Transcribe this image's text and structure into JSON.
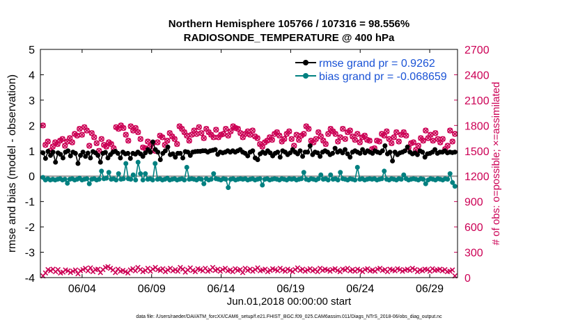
{
  "chart_data": {
    "type": "line",
    "title_lines": [
      "Northern Hemisphere 105766 / 107316 = 98.556%",
      "RADIOSONDE_TEMPERATURE @ 400 hPa"
    ],
    "xlabel": "Jun.01,2018 00:00:00 start",
    "ylabel_left": "rmse and bias (model - observation)",
    "ylabel_right": "# of obs: o=possible; ×=assimilated",
    "footnote": "data file: /Users/raeder/DAI/ATM_forcXX/CAM6_setup/f.e21.FHIST_BGC.f09_025.CAM6assim.011/Diags_NTrS_2018-06/obs_diag_output.nc",
    "x_ticks": [
      {
        "day": 4,
        "label": "06/04"
      },
      {
        "day": 9,
        "label": "06/09"
      },
      {
        "day": 14,
        "label": "06/14"
      },
      {
        "day": 19,
        "label": "06/19"
      },
      {
        "day": 24,
        "label": "06/24"
      },
      {
        "day": 29,
        "label": "06/29"
      }
    ],
    "xlim_days": [
      1,
      31
    ],
    "ylim_left": [
      -4,
      5
    ],
    "yticks_left": [
      "5",
      "4",
      "3",
      "2",
      "1",
      "0",
      "-1",
      "-2",
      "-3",
      "-4"
    ],
    "ylim_right": [
      0,
      2700
    ],
    "yticks_right": [
      "2700",
      "2400",
      "2100",
      "1800",
      "1500",
      "1200",
      "900",
      "600",
      "300",
      "0"
    ],
    "grid": false,
    "legend_position": "top-right",
    "colors": {
      "rmse": "#000000",
      "bias": "#008080",
      "obs": "#cc0055",
      "zero_line": "#999999"
    },
    "series": [
      {
        "name": "rmse grand pr = 0.9262",
        "key": "rmse",
        "values": [
          0.92,
          0.7,
          0.98,
          0.82,
          0.95,
          0.55,
          0.92,
          0.86,
          0.72,
          0.95,
          1.0,
          0.8,
          0.95,
          0.9,
          0.5,
          0.82,
          0.95,
          0.78,
          0.91,
          0.72,
          0.97,
          0.92,
          0.82,
          0.55,
          0.9,
          0.94,
          0.72,
          0.85,
          0.95,
          0.98,
          0.9,
          0.72,
          0.95,
          0.88,
          0.9,
          0.7,
          0.9,
          0.87,
          0.95,
          0.88,
          0.78,
          0.92,
          1.05,
          0.95,
          1.35,
          1.05,
          0.95,
          0.65,
          0.9,
          1.0,
          1.15,
          0.85,
          0.88,
          0.75,
          0.9,
          0.9,
          0.72,
          0.97,
          0.95,
          0.82,
          0.95,
          0.97,
          0.98,
          0.98,
          1.0,
          1.0,
          0.95,
          1.0,
          1.02,
          1.05,
          0.86,
          0.95,
          0.92,
          0.95,
          1.0,
          0.95,
          1.0,
          0.95,
          1.0,
          1.05,
          0.95,
          0.9,
          0.8,
          0.95,
          1.0,
          0.72,
          0.65,
          0.88,
          0.95,
          0.9,
          1.0,
          0.92,
          0.8,
          0.9,
          0.95,
          0.75,
          1.0,
          0.95,
          0.85,
          0.92,
          1.05,
          0.95,
          0.88,
          1.0,
          0.78,
          0.95,
          0.95,
          1.2,
          0.85,
          0.95,
          0.92,
          0.78,
          0.95,
          1.0,
          0.95,
          0.85,
          0.9,
          1.1,
          0.95,
          1.0,
          0.92,
          1.05,
          0.88,
          0.75,
          0.95,
          1.0,
          0.95,
          0.9,
          1.05,
          0.92,
          1.0,
          0.95,
          0.9,
          1.0,
          0.95,
          0.92,
          1.0,
          1.2,
          0.88,
          0.95,
          0.6,
          0.95,
          0.85,
          0.92,
          0.95,
          1.0,
          1.15,
          0.95,
          0.88,
          0.92,
          0.85,
          1.0,
          0.95,
          0.75,
          0.88,
          0.9,
          0.95,
          1.05,
          0.9,
          0.95,
          0.95,
          1.0,
          0.92,
          0.95,
          0.93,
          0.95
        ]
      },
      {
        "name": "bias grand pr = -0.068659",
        "key": "bias",
        "values": [
          -0.05,
          -0.15,
          -0.1,
          -0.15,
          -0.12,
          -0.15,
          -0.12,
          -0.1,
          -0.15,
          -0.12,
          -0.28,
          -0.12,
          -0.1,
          -0.15,
          -0.12,
          -0.08,
          -0.15,
          -0.12,
          -0.1,
          -0.3,
          -0.12,
          -0.1,
          -0.15,
          -0.12,
          0.2,
          -0.1,
          -0.08,
          0.15,
          -0.12,
          -0.1,
          -0.15,
          0.1,
          -0.12,
          -0.1,
          0.5,
          -0.1,
          -0.12,
          0.05,
          -0.15,
          0.55,
          0.1,
          -0.15,
          0.1,
          -0.12,
          -0.1,
          -0.15,
          0.5,
          -0.12,
          -0.1,
          -0.15,
          -0.12,
          -0.08,
          -0.15,
          -0.12,
          -0.1,
          -0.15,
          -0.12,
          -0.1,
          -0.15,
          0.35,
          -0.12,
          -0.1,
          -0.12,
          -0.15,
          -0.1,
          -0.12,
          -0.3,
          -0.1,
          -0.15,
          -0.12,
          0.1,
          -0.1,
          -0.12,
          -0.15,
          -0.1,
          -0.12,
          -0.45,
          -0.12,
          -0.1,
          -0.15,
          -0.12,
          -0.1,
          -0.12,
          -0.1,
          -0.15,
          -0.12,
          -0.1,
          -0.15,
          -0.12,
          -0.1,
          -0.35,
          -0.12,
          -0.1,
          -0.15,
          -0.12,
          -0.1,
          -0.12,
          -0.15,
          -0.1,
          -0.12,
          -0.15,
          -0.1,
          -0.12,
          -0.1,
          -0.15,
          -0.12,
          -0.1,
          0.15,
          -0.12,
          -0.15,
          -0.1,
          -0.12,
          -0.15,
          -0.1,
          0.05,
          -0.12,
          -0.1,
          -0.15,
          0.05,
          -0.12,
          -0.1,
          -0.15,
          0.15,
          -0.1,
          -0.12,
          -0.15,
          -0.1,
          -0.12,
          -0.15,
          0.35,
          -0.12,
          -0.1,
          -0.15,
          -0.12,
          -0.1,
          -0.12,
          -0.1,
          -0.15,
          -0.12,
          -0.1,
          0.2,
          -0.12,
          -0.15,
          -0.1,
          -0.12,
          -0.15,
          -0.1,
          -0.12,
          0.05,
          -0.1,
          -0.15,
          -0.12,
          -0.1,
          -0.12,
          -0.15,
          -0.1,
          -0.12,
          -0.3,
          -0.15,
          -0.1,
          -0.12,
          -0.15,
          -0.1,
          -0.12,
          -0.15,
          -0.1,
          -0.12,
          0.1,
          -0.25,
          -0.4
        ]
      },
      {
        "name": "# of obs possible",
        "key": "obs_possible",
        "values": [
          1800,
          1570,
          1610,
          1500,
          1550,
          1600,
          1580,
          1620,
          1640,
          1560,
          1610,
          1650,
          1600,
          1700,
          1680,
          1760,
          1690,
          1780,
          1740,
          1560,
          1710,
          1660,
          1590,
          1500,
          1640,
          1570,
          1550,
          1600,
          1580,
          1530,
          1780,
          1760,
          1800,
          1770,
          1690,
          1620,
          1790,
          1740,
          1770,
          1720,
          1640,
          1540,
          1530,
          1610,
          1550,
          1590,
          1500,
          1600,
          1680,
          1660,
          1570,
          1620,
          1710,
          1670,
          1640,
          1580,
          1790,
          1760,
          1720,
          1680,
          1620,
          1690,
          1740,
          1700,
          1780,
          1710,
          1650,
          1760,
          1720,
          1690,
          1660,
          1750,
          1660,
          1690,
          1700,
          1760,
          1680,
          1730,
          1790,
          1770,
          1760,
          1710,
          1660,
          1700,
          1730,
          1690,
          1740,
          1670,
          1650,
          1580,
          1550,
          1600,
          1620,
          1660,
          1630,
          1700,
          1720,
          1680,
          1610,
          1640,
          1700,
          1730,
          1640,
          1560,
          1690,
          1630,
          1680,
          1700,
          1790,
          1760,
          1620,
          1600,
          1640,
          1720,
          1670,
          1620,
          1580,
          1700,
          1760,
          1730,
          1700,
          1610,
          1660,
          1760,
          1640,
          1720,
          1740,
          1670,
          1630,
          1700,
          1600,
          1660,
          1680,
          1630,
          1620,
          1520,
          1530,
          1620,
          1610,
          1700,
          1680,
          1730,
          1640,
          1590,
          1660,
          1720,
          1610,
          1690,
          1720,
          1680,
          1540,
          1590,
          1600,
          1510,
          1560,
          1650,
          1620,
          1740,
          1650,
          1690,
          1620,
          1710,
          1640,
          1600,
          1640,
          1520,
          1560,
          1740,
          1610,
          1700
        ]
      },
      {
        "name": "# of obs assimilated",
        "key": "obs_assim",
        "values": [
          20,
          55,
          95,
          80,
          100,
          70,
          95,
          55,
          65,
          90,
          80,
          60,
          75,
          90,
          45,
          80,
          95,
          110,
          80,
          115,
          70,
          95,
          100,
          60,
          95,
          120,
          130,
          110,
          90,
          60,
          100,
          75,
          85,
          70,
          55,
          90,
          105,
          80,
          120,
          95,
          70,
          85,
          110,
          75,
          100,
          120,
          95,
          85,
          105,
          70,
          90,
          110,
          80,
          95,
          75,
          120,
          100,
          65,
          90,
          115,
          85,
          70,
          105,
          95,
          80,
          110,
          75,
          90,
          120,
          85,
          100,
          75,
          95,
          110,
          80,
          90,
          70,
          105,
          85,
          95,
          60,
          110,
          85,
          100,
          75,
          95,
          115,
          80,
          90,
          100,
          70,
          85,
          105,
          95,
          80,
          110,
          90,
          75,
          100,
          85,
          70,
          95,
          115,
          85,
          100,
          75,
          90,
          105,
          80,
          95,
          70,
          110,
          85,
          100,
          90,
          75,
          95,
          105,
          85,
          70,
          100,
          90,
          110,
          80,
          95,
          75,
          100,
          85,
          70,
          95,
          105,
          80,
          90,
          75,
          100,
          110,
          85,
          95,
          70,
          100,
          90,
          80,
          105,
          95,
          75,
          90,
          100,
          85,
          110,
          95,
          70,
          90,
          80,
          100,
          95,
          75,
          105,
          85,
          90,
          100,
          80,
          95,
          70,
          75,
          90,
          20
        ]
      }
    ]
  }
}
